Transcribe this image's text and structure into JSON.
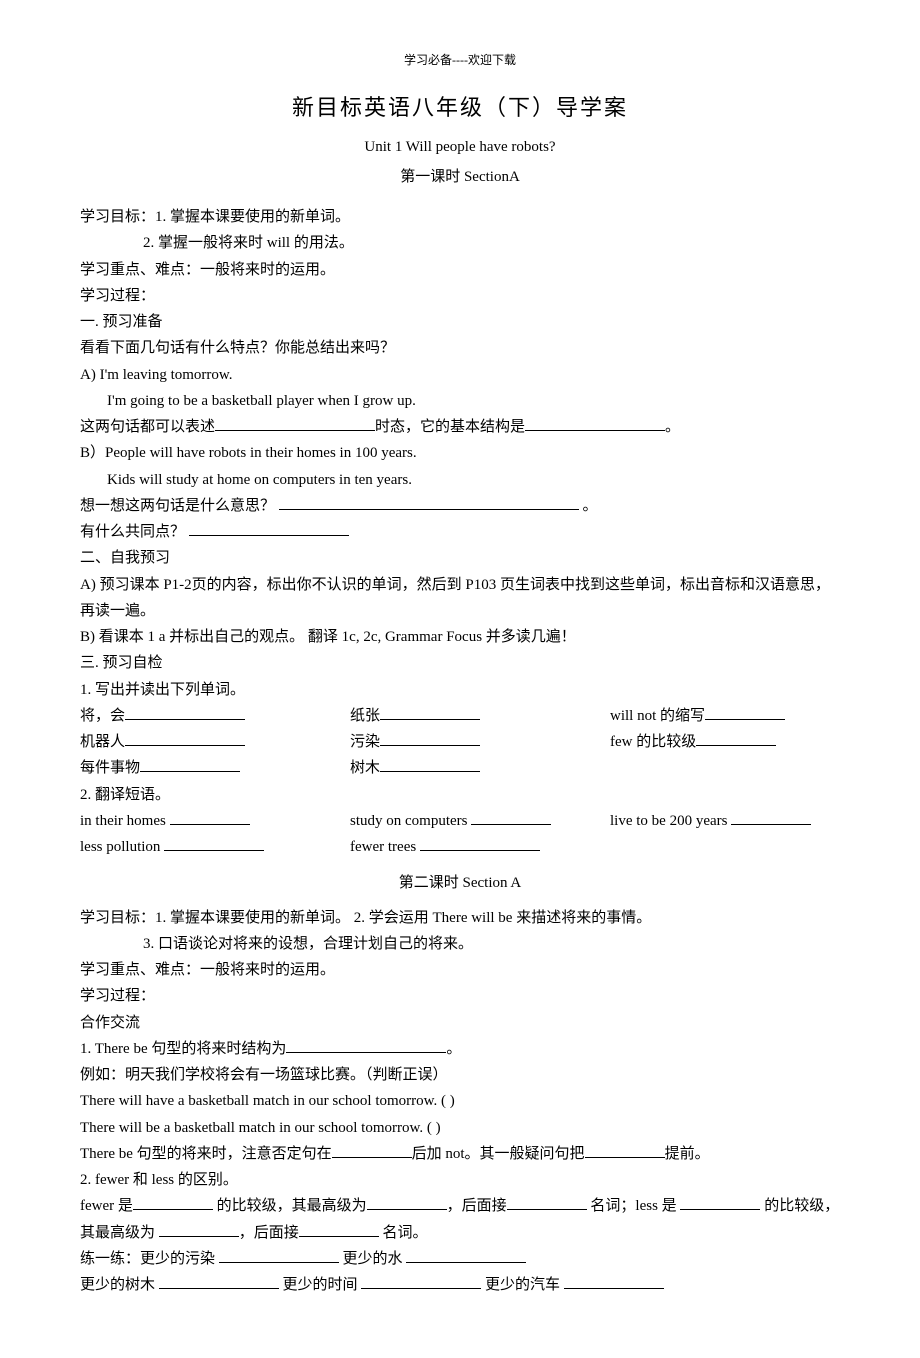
{
  "header": "学习必备----欢迎下载",
  "title": "新目标英语八年级（下）导学案",
  "subtitle_en": "Unit 1 Will people have robots?",
  "subtitle_cn": "第一课时  SectionA",
  "goals_line1": "学习目标：1. 掌握本课要使用的新单词。",
  "goals_line2": "2. 掌握一般将来时 will  的用法。",
  "focus": "学习重点、难点：一般将来时的运用。",
  "process": "学习过程：",
  "sec1_head": "一.  预习准备",
  "sec1_q": "看看下面几句话有什么特点？你能总结出来吗？",
  "sec1_a1": "A) I'm leaving tomorrow.",
  "sec1_a2": "I'm going to be a basketball player when I grow up.",
  "sec1_infer_pre": "这两句话都可以表述",
  "sec1_infer_mid": "时态，它的基本结构是",
  "sec1_infer_end": "。",
  "sec1_b1": "B）People will have robots in their homes in 100 years.",
  "sec1_b2": "Kids will study at home on computers in ten years.",
  "sec1_think": "想一想这两句话是什么意思？",
  "sec1_think_end": "。",
  "sec1_common": "有什么共同点？",
  "sec2_head": "二、自我预习",
  "sec2_a": "A)  预习课本 P1-2页的内容，标出你不认识的单词，然后到 P103 页生词表中找到这些单词，标出音标和汉语意思，再读一遍。",
  "sec2_b": "B)  看课本 1 a 并标出自己的观点。  翻译 1c, 2c, Grammar Focus  并多读几遍！",
  "sec3_head": "三.  预习自检",
  "sec3_1": "1. 写出并读出下列单词。",
  "vocab": {
    "r1a": "将，会",
    "r1b": "纸张",
    "r1c": "will not  的缩写",
    "r2a": "机器人",
    "r2b": "污染",
    "r2c": "few  的比较级",
    "r3a": "每件事物",
    "r3b": "树木"
  },
  "sec3_2": "2. 翻译短语。",
  "phrases": {
    "p1a": "in their homes",
    "p1b": "study on computers",
    "p1c": "live to be 200 years",
    "p2a": "less pollution",
    "p2b": "fewer trees"
  },
  "lesson2_title": "第二课时  Section A",
  "l2_goal1": "学习目标：1. 掌握本课要使用的新单词。  2. 学会运用  There will be   来描述将来的事情。",
  "l2_goal2": "3. 口语谈论对将来的设想，合理计划自己的将来。",
  "l2_focus": "学习重点、难点：一般将来时的运用。",
  "l2_process": "学习过程：",
  "l2_coop": "合作交流",
  "l2_1_pre": "1. There be  句型的将来时结构为",
  "l2_1_end": "。",
  "l2_ex": "例如：明天我们学校将会有一场篮球比赛。（判断正误）",
  "l2_ex1": "There will have a basketball match in our school tomorrow. (         )",
  "l2_ex2": "There will be a basketball match in our school tomorrow. (         )",
  "l2_note_pre": "There be  句型的将来时，注意否定句在",
  "l2_note_mid": "后加 not。其一般疑问句把",
  "l2_note_end": "提前。",
  "l2_2": "2. fewer  和  less  的区别。",
  "l2_fewer_a": "fewer  是",
  "l2_fewer_b": "  的比较级，其最高级为",
  "l2_fewer_c": "，后面接",
  "l2_fewer_d": "  名词；less  是  ",
  "l2_fewer_e": "  的比较级，",
  "l2_least_a": "其最高级为  ",
  "l2_least_b": "，后面接",
  "l2_least_c": "  名词。",
  "l2_prac1_a": "练一练：更少的污染  ",
  "l2_prac1_b": "  更少的水  ",
  "l2_prac2_a": "更少的树木  ",
  "l2_prac2_b": "  更少的时间  ",
  "l2_prac2_c": "  更少的汽车  "
}
